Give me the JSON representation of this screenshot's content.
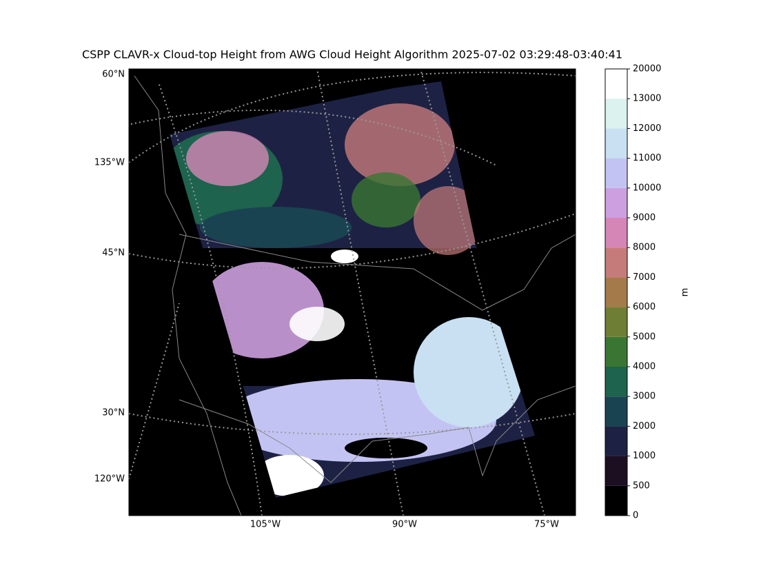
{
  "title": "CSPP CLAVR-x Cloud-top Height from AWG Cloud Height Algorithm 2025-07-02 03:29:48-03:40:41",
  "map": {
    "left_labels": [
      "60°N",
      "135°W",
      "45°N",
      "30°N",
      "120°W"
    ],
    "bottom_labels": [
      "105°W",
      "90°W",
      "75°W"
    ]
  },
  "colorbar": {
    "label": "m",
    "levels": [
      0,
      500,
      1000,
      2000,
      3000,
      4000,
      5000,
      6000,
      7000,
      8000,
      9000,
      10000,
      11000,
      12000,
      13000,
      20000
    ],
    "colors": [
      "#000000",
      "#1c0f22",
      "#1d2244",
      "#1a4351",
      "#1e634d",
      "#3a7533",
      "#6e7f35",
      "#a47a4a",
      "#c67b7b",
      "#d686b6",
      "#cd9fe0",
      "#c3c3f3",
      "#c8e0f2",
      "#dcf2ef",
      "#ffffff"
    ]
  }
}
